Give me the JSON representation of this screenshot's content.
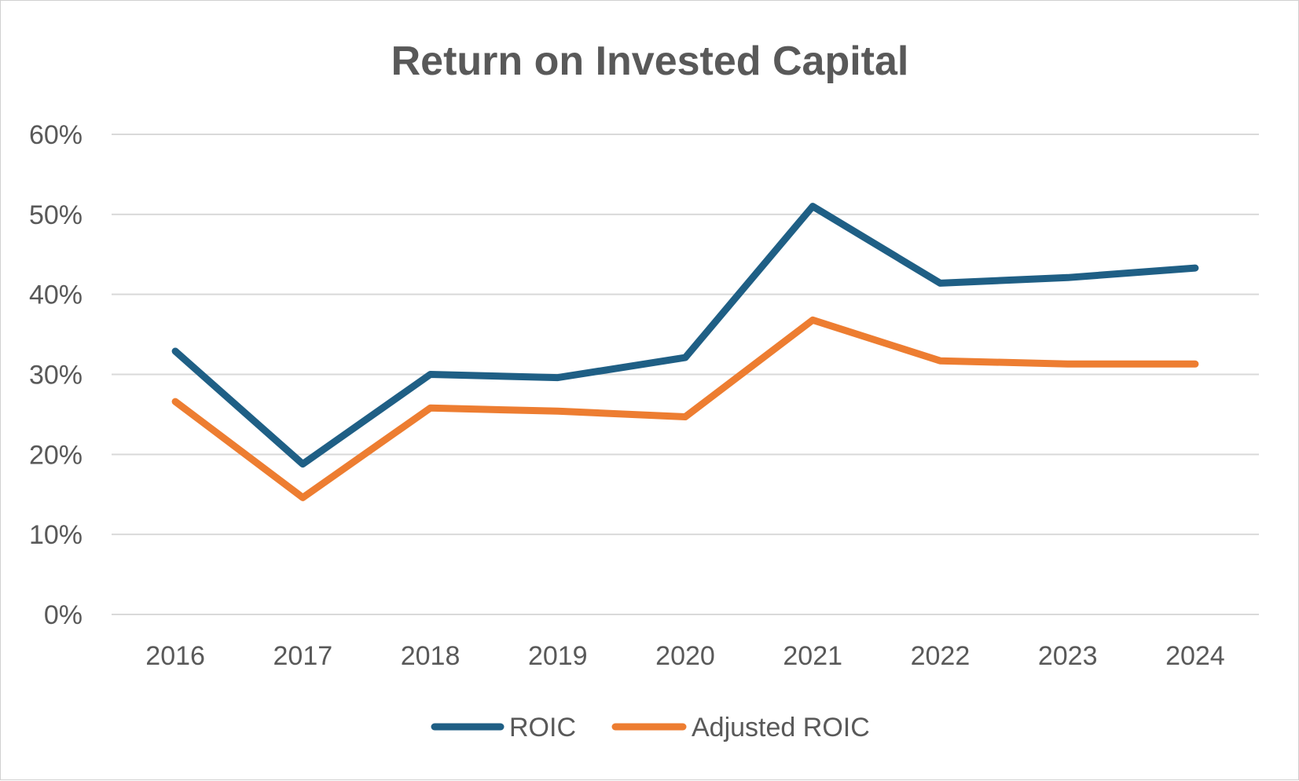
{
  "chart_data": {
    "type": "line",
    "title": "Return on Invested Capital",
    "xlabel": "",
    "ylabel": "",
    "categories": [
      "2016",
      "2017",
      "2018",
      "2019",
      "2020",
      "2021",
      "2022",
      "2023",
      "2024"
    ],
    "ylim": [
      0,
      0.6
    ],
    "yticks": [
      0,
      0.1,
      0.2,
      0.3,
      0.4,
      0.5,
      0.6
    ],
    "ytick_labels": [
      "0%",
      "10%",
      "20%",
      "30%",
      "40%",
      "50%",
      "60%"
    ],
    "grid": true,
    "legend_position": "bottom",
    "series": [
      {
        "name": "ROIC",
        "color": "#1f5f85",
        "values": [
          0.329,
          0.188,
          0.3,
          0.296,
          0.321,
          0.51,
          0.414,
          0.421,
          0.433
        ]
      },
      {
        "name": "Adjusted ROIC",
        "color": "#ed7d31",
        "values": [
          0.266,
          0.146,
          0.258,
          0.254,
          0.247,
          0.368,
          0.317,
          0.313,
          0.313
        ]
      }
    ]
  }
}
